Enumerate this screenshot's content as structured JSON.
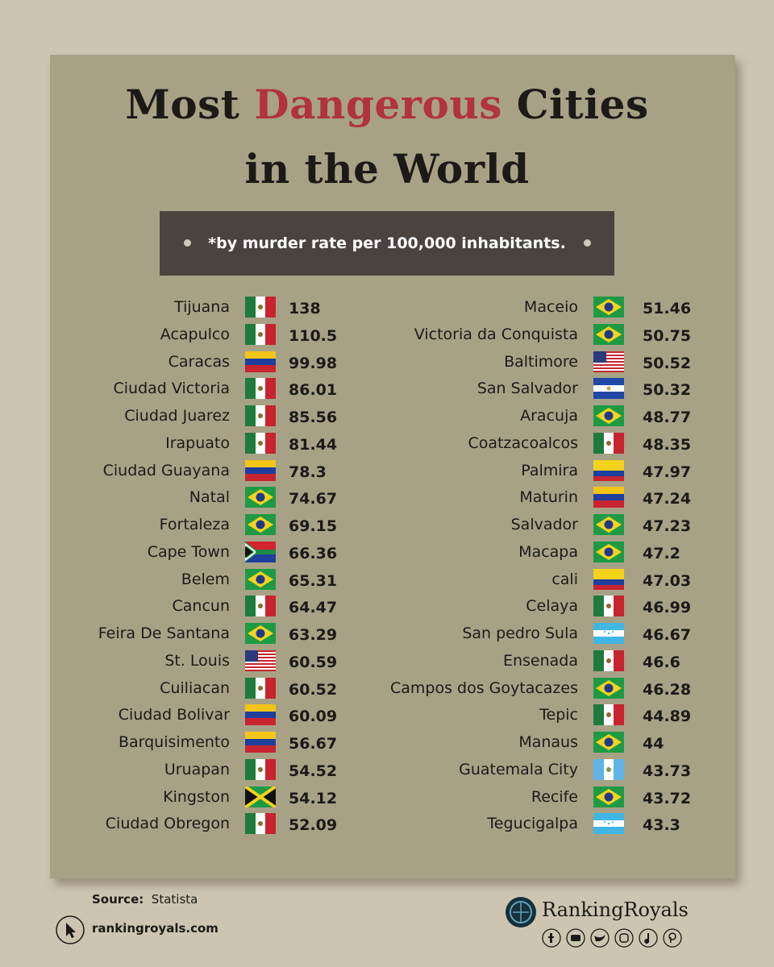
{
  "title": {
    "parts": [
      "Most",
      "Dangerous",
      "Cities",
      "in the World"
    ]
  },
  "subtitle": "*by murder rate per 100,000 inhabitants.",
  "columns": [
    {
      "rows": [
        {
          "city": "Tijuana",
          "rate": 138
        },
        {
          "city": "Acapulco",
          "rate": 110.5
        },
        {
          "city": "Caracas",
          "rate": 99.98
        },
        {
          "city": "Ciudad Victoria",
          "rate": 86.01
        },
        {
          "city": "Ciudad Juarez",
          "rate": 85.56
        },
        {
          "city": "Irapuato",
          "rate": 81.44
        },
        {
          "city": "Ciudad Guayana",
          "rate": 78.3
        },
        {
          "city": "Natal",
          "rate": 74.67
        },
        {
          "city": "Fortaleza",
          "rate": 69.15
        },
        {
          "city": "Cape Town",
          "rate": 66.36
        },
        {
          "city": "Belem",
          "rate": 65.31
        },
        {
          "city": "Cancun",
          "rate": 64.47
        },
        {
          "city": "Feira De Santana",
          "rate": 63.29
        },
        {
          "city": "St. Louis",
          "rate": 60.59
        },
        {
          "city": "Cuiliacan",
          "rate": 60.52
        },
        {
          "city": "Ciudad Bolivar",
          "rate": 60.09
        },
        {
          "city": "Barquisimento",
          "rate": 56.67
        },
        {
          "city": "Uruapan",
          "rate": 54.52
        },
        {
          "city": "Kingston",
          "rate": 54.12
        },
        {
          "city": "Ciudad Obregon",
          "rate": 52.09
        }
      ]
    },
    {
      "rows": [
        {
          "city": "Maceio",
          "rate": 51.46
        },
        {
          "city": "Victoria da Conquista",
          "rate": 50.75
        },
        {
          "city": "Baltimore",
          "rate": 50.52
        },
        {
          "city": "San Salvador",
          "rate": 50.32
        },
        {
          "city": "Aracuja",
          "rate": 48.77
        },
        {
          "city": "Coatzacoalcos",
          "rate": 48.35
        },
        {
          "city": "Palmira",
          "rate": 47.97
        },
        {
          "city": "Maturin",
          "rate": 47.24
        },
        {
          "city": "Salvador",
          "rate": 47.23
        },
        {
          "city": "Macapa",
          "rate": 47.2
        },
        {
          "city": "cali",
          "rate": 47.03
        },
        {
          "city": "Celaya",
          "rate": 46.99
        },
        {
          "city": "San pedro Sula",
          "rate": 46.67
        },
        {
          "city": "Ensenada",
          "rate": 46.6
        },
        {
          "city": "Campos dos Goytacazes",
          "rate": 46.28
        },
        {
          "city": "Tepic",
          "rate": 44.89
        },
        {
          "city": "Manaus",
          "rate": 44
        },
        {
          "city": "Guatemala City",
          "rate": 43.73
        },
        {
          "city": "Recife",
          "rate": 43.72
        },
        {
          "city": "Tegucigalpa",
          "rate": 43.3
        }
      ]
    }
  ],
  "footer": {
    "source_label": "Source:",
    "source": "Statista",
    "website": "rankingroyals.com",
    "brand": "RankingRoyals"
  }
}
